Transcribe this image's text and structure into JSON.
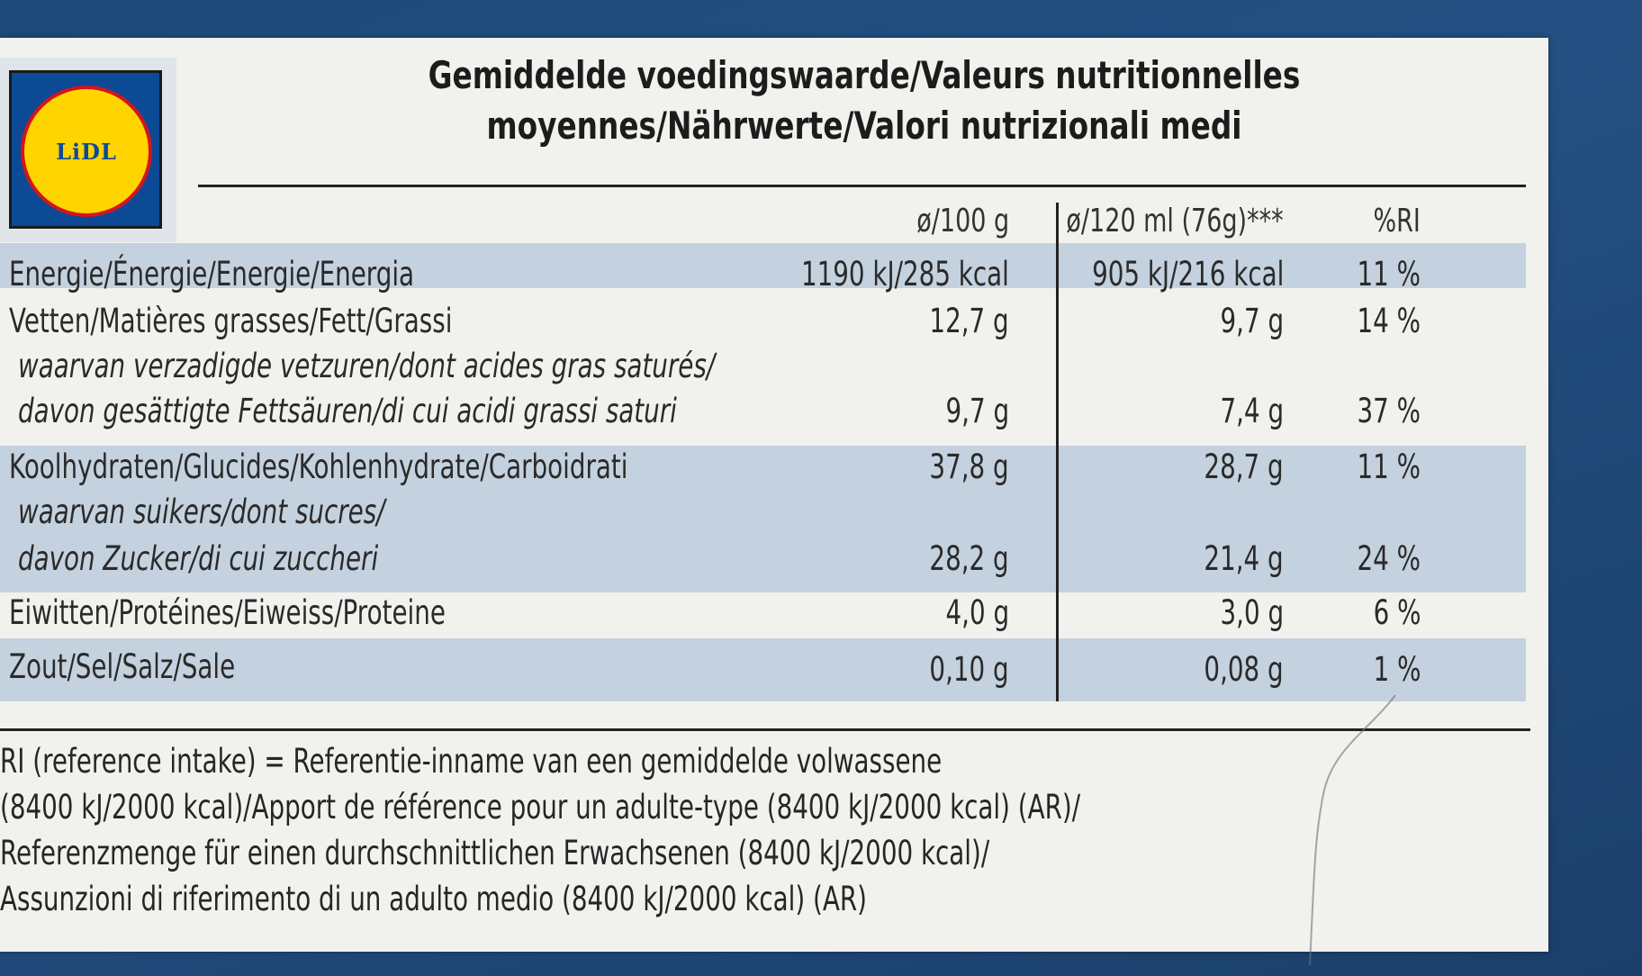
{
  "logo": {
    "text": "LiDL"
  },
  "title": {
    "line1": "Gemiddelde voedingswaarde/Valeurs nutritionnelles",
    "line2": "moyennes/Nährwerte/Valori nutrizionali medi"
  },
  "columns": {
    "per100": "ø/100 g",
    "perPortion": "ø/120 ml (76g)***",
    "ri": "%RI"
  },
  "rows": [
    {
      "label": "Energie/Énergie/Energie/Energia",
      "per100": "1190 kJ/285 kcal",
      "perPortion": "905 kJ/216 kcal",
      "ri": "11 %"
    },
    {
      "label": "Vetten/Matières grasses/Fett/Grassi",
      "per100": "12,7 g",
      "perPortion": "9,7 g",
      "ri": "14 %"
    },
    {
      "sub1": "waarvan verzadigde vetzuren/dont acides gras saturés/",
      "sub2": "davon gesättigte Fettsäuren/di cui acidi grassi saturi",
      "per100": "9,7 g",
      "perPortion": "7,4 g",
      "ri": "37 %"
    },
    {
      "label": "Koolhydraten/Glucides/Kohlenhydrate/Carboidrati",
      "per100": "37,8 g",
      "perPortion": "28,7 g",
      "ri": "11 %"
    },
    {
      "sub1": "waarvan suikers/dont sucres/",
      "sub2": "davon Zucker/di cui zuccheri",
      "per100": "28,2 g",
      "perPortion": "21,4 g",
      "ri": "24 %"
    },
    {
      "label": "Eiwitten/Protéines/Eiweiss/Proteine",
      "per100": "4,0 g",
      "perPortion": "3,0 g",
      "ri": "6 %"
    },
    {
      "label": "Zout/Sel/Salz/Sale",
      "per100": "0,10 g",
      "perPortion": "0,08 g",
      "ri": "1 %"
    }
  ],
  "footnote": [
    "RI (reference intake) = Referentie-inname van een gemiddelde volwassene",
    "(8400 kJ/2000 kcal)/Apport de référence pour un adulte-type (8400 kJ/2000 kcal) (AR)/",
    "Referenzmenge für einen durchschnittlichen Erwachsenen (8400 kJ/2000 kcal)/",
    "Assunzioni di riferimento di un adulto medio (8400 kJ/2000 kcal) (AR)"
  ],
  "colors": {
    "panel": "#f1f1ee",
    "band": "#c4d1de",
    "background": "#234f82",
    "logoBlue": "#0d4a95",
    "logoYellow": "#ffd400",
    "logoRed": "#d4141e"
  }
}
